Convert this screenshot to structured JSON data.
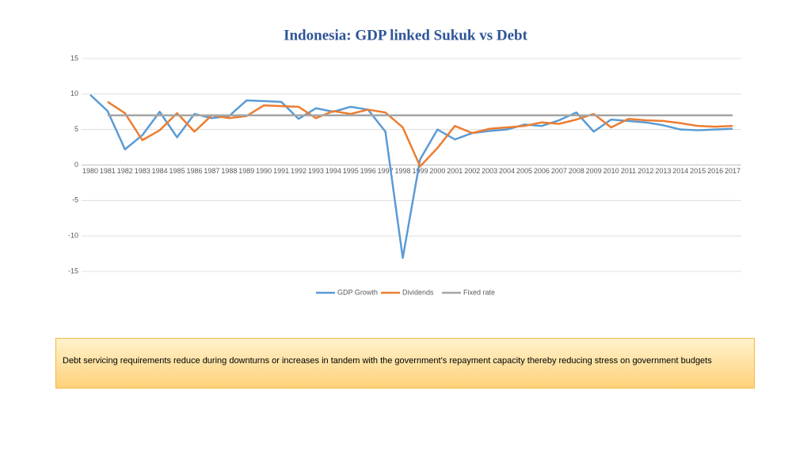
{
  "chart_data": {
    "type": "line",
    "title": "Indonesia: GDP linked Sukuk vs Debt",
    "categories": [
      "1980",
      "1981",
      "1982",
      "1983",
      "1984",
      "1985",
      "1986",
      "1987",
      "1988",
      "1989",
      "1990",
      "1991",
      "1992",
      "1993",
      "1994",
      "1995",
      "1996",
      "1997",
      "1998",
      "1999",
      "2000",
      "2001",
      "2002",
      "2003",
      "2004",
      "2005",
      "2006",
      "2007",
      "2008",
      "2009",
      "2010",
      "2011",
      "2012",
      "2013",
      "2014",
      "2015",
      "2016",
      "2017"
    ],
    "series": [
      {
        "name": "GDP Growth",
        "color": "#5b9bd5",
        "values": [
          9.9,
          7.6,
          2.2,
          4.2,
          7.5,
          3.9,
          7.2,
          6.6,
          6.9,
          9.1,
          9.0,
          8.9,
          6.5,
          8.0,
          7.5,
          8.2,
          7.8,
          4.7,
          -13.1,
          0.8,
          5.0,
          3.6,
          4.5,
          4.8,
          5.0,
          5.7,
          5.5,
          6.3,
          7.4,
          4.7,
          6.4,
          6.2,
          6.0,
          5.6,
          5.0,
          4.9,
          5.0,
          5.1
        ]
      },
      {
        "name": "Dividends",
        "color": "#ed7d31",
        "values": [
          null,
          8.9,
          7.3,
          3.5,
          4.9,
          7.3,
          4.7,
          7.0,
          6.6,
          6.9,
          8.4,
          8.3,
          8.2,
          6.6,
          7.6,
          7.2,
          7.8,
          7.4,
          5.3,
          -0.2,
          2.4,
          5.5,
          4.5,
          5.1,
          5.3,
          5.5,
          6.0,
          5.8,
          6.4,
          7.2,
          5.3,
          6.5,
          6.3,
          6.2,
          5.9,
          5.5,
          5.4,
          5.5
        ]
      },
      {
        "name": "Fixed rate",
        "color": "#a5a5a5",
        "values": [
          null,
          7,
          7,
          7,
          7,
          7,
          7,
          7,
          7,
          7,
          7,
          7,
          7,
          7,
          7,
          7,
          7,
          7,
          7,
          7,
          7,
          7,
          7,
          7,
          7,
          7,
          7,
          7,
          7,
          7,
          7,
          7,
          7,
          7,
          7,
          7,
          7,
          7
        ]
      }
    ],
    "ylim": [
      -15,
      15
    ],
    "yticks": [
      -15,
      -10,
      -5,
      0,
      5,
      10,
      15
    ],
    "grid": true,
    "legend": "bottom"
  },
  "callout": "Debt servicing requirements reduce during downturns or increases in tandem with the government’s repayment capacity thereby reducing stress on government budgets"
}
